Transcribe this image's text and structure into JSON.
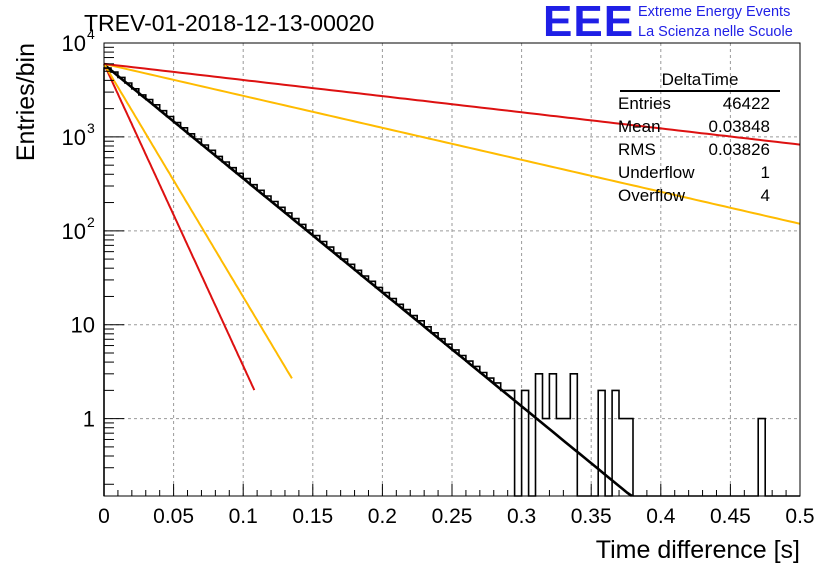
{
  "title": "TREV-01-2018-12-13-00020",
  "logo": {
    "mark": "EEE",
    "line1": "Extreme Energy Events",
    "line2": "La Scienza nelle Scuole",
    "color": "#1f1fe6"
  },
  "stats_box": {
    "title": "DeltaTime",
    "rows": [
      {
        "key": "Entries",
        "value": "46422"
      },
      {
        "key": "Mean",
        "value": "0.03848"
      },
      {
        "key": "RMS",
        "value": "0.03826"
      },
      {
        "key": "Underflow",
        "value": "1"
      },
      {
        "key": "Overflow",
        "value": "4"
      }
    ]
  },
  "chart_data": {
    "type": "histogram",
    "xlabel": "Time difference [s]",
    "ylabel": "Entries/bin",
    "xlim": [
      0,
      0.5
    ],
    "ylim": [
      0.15,
      10000
    ],
    "yscale": "log",
    "grid": true,
    "x_ticks": [
      "0",
      "0.05",
      "0.1",
      "0.15",
      "0.2",
      "0.25",
      "0.3",
      "0.35",
      "0.4",
      "0.45",
      "0.5"
    ],
    "y_ticks": [
      {
        "value": 1,
        "label": "1"
      },
      {
        "value": 10,
        "label": "10"
      },
      {
        "value": 100,
        "label": "10",
        "exp": "2"
      },
      {
        "value": 1000,
        "label": "10",
        "exp": "3"
      },
      {
        "value": 10000,
        "label": "10",
        "exp": "4"
      }
    ],
    "histogram": {
      "color": "#000000",
      "bin_edges_start": 0,
      "bin_width": 0.005,
      "counts": [
        5400,
        4900,
        4300,
        3750,
        3250,
        2800,
        2500,
        2200,
        1900,
        1650,
        1420,
        1250,
        1080,
        950,
        820,
        720,
        620,
        540,
        470,
        410,
        360,
        310,
        270,
        235,
        205,
        178,
        155,
        135,
        117,
        102,
        89,
        77,
        67,
        58,
        50,
        44,
        38,
        33,
        29,
        25,
        22,
        19,
        16.5,
        14.5,
        12.5,
        11,
        9.5,
        8.2,
        7.1,
        6.2,
        5.4,
        4.7,
        4.1,
        3.6,
        3.1,
        2.7,
        2.4,
        2.1,
        1.8,
        1.6,
        1.4,
        1.2,
        1.05,
        0.9,
        0.8,
        0.7,
        0.6,
        0.52,
        0.45,
        0.4,
        0.35,
        0.3,
        0.27,
        0.24,
        0.21,
        0.18,
        0.16,
        0.15,
        0.15,
        0.15,
        0.15,
        0.15,
        0.15,
        0.15,
        0.15,
        0.15,
        0.15,
        0.15,
        0.15,
        0.15,
        0.15,
        0.15,
        0.15,
        0.15,
        0.15,
        0.15,
        0.15,
        0.15,
        0.15,
        0.15
      ],
      "sparse_overrides": [
        {
          "x": 0.285,
          "count": 2
        },
        {
          "x": 0.29,
          "count": 2
        },
        {
          "x": 0.295,
          "count": 0.15
        },
        {
          "x": 0.3,
          "count": 2
        },
        {
          "x": 0.305,
          "count": 0.15
        },
        {
          "x": 0.31,
          "count": 3
        },
        {
          "x": 0.315,
          "count": 1
        },
        {
          "x": 0.32,
          "count": 3
        },
        {
          "x": 0.325,
          "count": 1
        },
        {
          "x": 0.33,
          "count": 1
        },
        {
          "x": 0.335,
          "count": 3
        },
        {
          "x": 0.34,
          "count": 0.15
        },
        {
          "x": 0.345,
          "count": 0.15
        },
        {
          "x": 0.35,
          "count": 0.15
        },
        {
          "x": 0.355,
          "count": 2
        },
        {
          "x": 0.36,
          "count": 0.15
        },
        {
          "x": 0.365,
          "count": 2
        },
        {
          "x": 0.37,
          "count": 1
        },
        {
          "x": 0.375,
          "count": 1
        },
        {
          "x": 0.38,
          "count": 0.15
        },
        {
          "x": 0.47,
          "count": 1
        }
      ]
    },
    "series": [
      {
        "color": "#000000",
        "kind": "fit",
        "y0": 5900,
        "tau": 0.0358,
        "x_end": 0.41
      },
      {
        "color": "#dd1111",
        "kind": "reference",
        "y0": 6000,
        "tau": 0.0135,
        "x_end": 0.108
      },
      {
        "color": "#ffbb00",
        "kind": "reference",
        "y0": 6000,
        "tau": 0.0175,
        "x_end": 0.135
      },
      {
        "color": "#ffbb00",
        "kind": "reference",
        "y0": 6000,
        "tau": 0.1275,
        "x_end": 0.5
      },
      {
        "color": "#dd1111",
        "kind": "reference",
        "y0": 6000,
        "tau": 0.2525,
        "x_end": 0.5
      }
    ]
  }
}
